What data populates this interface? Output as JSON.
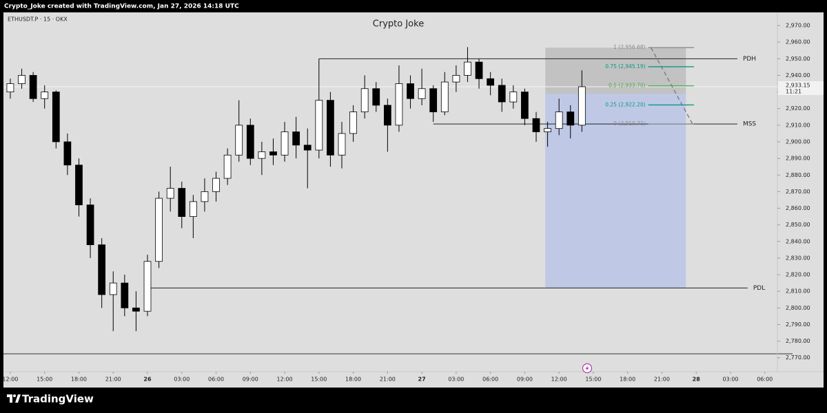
{
  "header": {
    "caption": "Crypto_Joke created with TradingView.com, Jan 27, 2026 14:18 UTC"
  },
  "footer": {
    "brand": "TradingView"
  },
  "chart_data": {
    "type": "candlestick",
    "title": "Crypto Joke",
    "symbol": "ETHUSDT.P · 15 · OKX",
    "x": [
      0,
      1,
      2,
      3,
      4,
      5,
      6,
      7,
      8,
      9,
      10,
      11,
      12,
      13,
      14,
      15,
      16,
      17,
      18,
      19,
      20,
      21,
      22,
      23,
      24,
      25,
      26,
      27,
      28,
      29,
      30,
      31,
      32,
      33,
      34,
      35,
      36,
      37,
      38,
      39,
      40,
      41,
      42,
      43,
      44,
      45,
      46,
      47,
      48,
      49,
      50
    ],
    "open": [
      2930,
      2935,
      2940,
      2926,
      2930,
      2900,
      2886,
      2862,
      2838,
      2808,
      2815,
      2800,
      2798,
      2828,
      2866,
      2872,
      2855,
      2864,
      2870,
      2878,
      2892,
      2910,
      2890,
      2894,
      2892,
      2906,
      2898,
      2895,
      2925,
      2892,
      2905,
      2918,
      2932,
      2922,
      2910,
      2935,
      2926,
      2932,
      2918,
      2936,
      2940,
      2948,
      2938,
      2934,
      2924,
      2930,
      2914,
      2906,
      2908,
      2918,
      2910
    ],
    "high": [
      2938,
      2944,
      2942,
      2934,
      2931,
      2905,
      2890,
      2866,
      2842,
      2822,
      2820,
      2810,
      2832,
      2870,
      2885,
      2876,
      2868,
      2878,
      2882,
      2896,
      2925,
      2914,
      2900,
      2902,
      2912,
      2915,
      2908,
      2950,
      2930,
      2912,
      2922,
      2940,
      2936,
      2926,
      2946,
      2940,
      2944,
      2934,
      2942,
      2946,
      2957,
      2950,
      2942,
      2938,
      2934,
      2932,
      2918,
      2912,
      2926,
      2922,
      2943
    ],
    "low": [
      2926,
      2932,
      2924,
      2920,
      2896,
      2880,
      2855,
      2830,
      2800,
      2786,
      2795,
      2786,
      2795,
      2824,
      2858,
      2848,
      2842,
      2858,
      2864,
      2874,
      2888,
      2886,
      2880,
      2886,
      2888,
      2890,
      2872,
      2890,
      2885,
      2884,
      2900,
      2914,
      2918,
      2894,
      2906,
      2920,
      2922,
      2912,
      2916,
      2930,
      2936,
      2932,
      2928,
      2918,
      2920,
      2910,
      2900,
      2897,
      2904,
      2902,
      2906
    ],
    "close": [
      2935,
      2940,
      2926,
      2930,
      2900,
      2886,
      2862,
      2838,
      2808,
      2815,
      2800,
      2798,
      2828,
      2866,
      2872,
      2855,
      2864,
      2870,
      2878,
      2892,
      2910,
      2890,
      2894,
      2892,
      2906,
      2898,
      2895,
      2925,
      2892,
      2905,
      2918,
      2932,
      2922,
      2910,
      2935,
      2926,
      2932,
      2918,
      2936,
      2940,
      2948,
      2938,
      2934,
      2924,
      2930,
      2914,
      2906,
      2908,
      2918,
      2910,
      2933.15
    ],
    "up_color": "#ffffff",
    "down_color": "#000000",
    "wick_color": "#000000",
    "xlim": [
      -0.6,
      67.1
    ],
    "xticks": [
      {
        "value": 0,
        "label": "12:00"
      },
      {
        "value": 3,
        "label": "15:00"
      },
      {
        "value": 6,
        "label": "18:00"
      },
      {
        "value": 9,
        "label": "21:00"
      },
      {
        "value": 12,
        "label": "26"
      },
      {
        "value": 15,
        "label": "03:00"
      },
      {
        "value": 18,
        "label": "06:00"
      },
      {
        "value": 21,
        "label": "09:00"
      },
      {
        "value": 24,
        "label": "12:00"
      },
      {
        "value": 27,
        "label": "15:00"
      },
      {
        "value": 30,
        "label": "18:00"
      },
      {
        "value": 33,
        "label": "21:00"
      },
      {
        "value": 36,
        "label": "27"
      },
      {
        "value": 39,
        "label": "03:00"
      },
      {
        "value": 42,
        "label": "06:00"
      },
      {
        "value": 45,
        "label": "09:00"
      },
      {
        "value": 48,
        "label": "12:00"
      },
      {
        "value": 51,
        "label": "15:00"
      },
      {
        "value": 54,
        "label": "18:00"
      },
      {
        "value": 57,
        "label": "21:00"
      },
      {
        "value": 60,
        "label": "28"
      },
      {
        "value": 63,
        "label": "03:00"
      },
      {
        "value": 66,
        "label": "06:00"
      }
    ],
    "ylim": [
      2761.6,
      2977.9
    ],
    "yticks": [
      {
        "value": 2770,
        "label": "2,770.00"
      },
      {
        "value": 2780,
        "label": "2,780.00"
      },
      {
        "value": 2790,
        "label": "2,790.00"
      },
      {
        "value": 2800,
        "label": "2,800.00"
      },
      {
        "value": 2810,
        "label": "2,810.00"
      },
      {
        "value": 2820,
        "label": "2,820.00"
      },
      {
        "value": 2830,
        "label": "2,830.00"
      },
      {
        "value": 2840,
        "label": "2,840.00"
      },
      {
        "value": 2850,
        "label": "2,850.00"
      },
      {
        "value": 2860,
        "label": "2,860.00"
      },
      {
        "value": 2870,
        "label": "2,870.00"
      },
      {
        "value": 2880,
        "label": "2,880.00"
      },
      {
        "value": 2890,
        "label": "2,890.00"
      },
      {
        "value": 2900,
        "label": "2,900.00"
      },
      {
        "value": 2910,
        "label": "2,910.00"
      },
      {
        "value": 2920,
        "label": "2,920.00"
      },
      {
        "value": 2930,
        "label": "2,930.00"
      },
      {
        "value": 2940,
        "label": "2,940.00"
      },
      {
        "value": 2950,
        "label": "2,950.00"
      },
      {
        "value": 2960,
        "label": "2,960.00"
      },
      {
        "value": 2970,
        "label": "2,970.00"
      }
    ],
    "last_price": {
      "value": 2933.15,
      "label": "2,933.15"
    },
    "countdown": "11:21",
    "levels": [
      {
        "name": "PDH",
        "value": 2950,
        "x_start": 27,
        "x_end": 63.6
      },
      {
        "name": "MSS",
        "value": 2910.71,
        "x_start": 37,
        "x_end": 63.6
      },
      {
        "name": "PDL",
        "value": 2812,
        "x_start": 12,
        "x_end": 64.5
      }
    ],
    "fib": {
      "x_start": 55.8,
      "x_end": 59.8,
      "levels": [
        {
          "label": "1 (2,956.68)",
          "value": 2956.68,
          "color": "#8a8a8a"
        },
        {
          "label": "0.75 (2,945.19)",
          "value": 2945.19,
          "color": "#089981"
        },
        {
          "label": "0.5 (2,933.70)",
          "value": 2933.7,
          "color": "#4caf50"
        },
        {
          "label": "0.25 (2,922.20)",
          "value": 2922.2,
          "color": "#089981"
        },
        {
          "label": "0 (2,910.71)",
          "value": 2910.71,
          "color": "#8a8a8a"
        }
      ]
    },
    "position": {
      "x_start": 46.8,
      "x_end": 59.1,
      "stop": 2956.68,
      "entry": 2929,
      "target": 2812
    }
  }
}
